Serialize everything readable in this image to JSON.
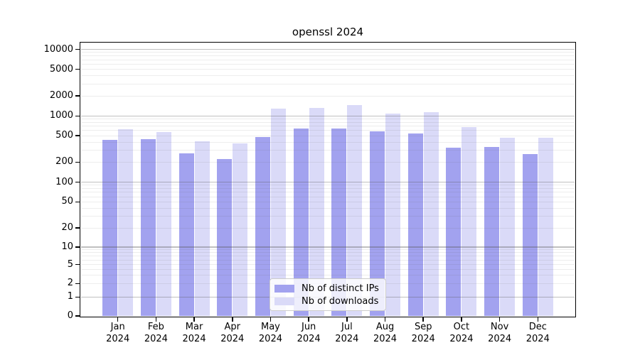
{
  "title": "openssl 2024",
  "year": "2024",
  "months": [
    "Jan",
    "Feb",
    "Mar",
    "Apr",
    "May",
    "Jun",
    "Jul",
    "Aug",
    "Sep",
    "Oct",
    "Nov",
    "Dec"
  ],
  "colors": {
    "distinct_ips": "#a2a2ef",
    "downloads": "#dadaf8",
    "axis": "#000000",
    "grid_major": "#b0b0b0",
    "grid_minor": "#e8e8e8"
  },
  "legend": {
    "items": [
      {
        "label": "Nb of distinct IPs",
        "color": "#a2a2ef"
      },
      {
        "label": "Nb of downloads",
        "color": "#dadaf8"
      }
    ]
  },
  "y_axis": {
    "tick_labels": [
      "0",
      "1",
      "2",
      "5",
      "10",
      "20",
      "50",
      "100",
      "200",
      "500",
      "1000",
      "2000",
      "5000",
      "10000"
    ]
  },
  "chart_data": {
    "type": "bar",
    "title": "openssl 2024",
    "xlabel": "",
    "ylabel": "",
    "yscale": "symlog",
    "ylim": [
      0,
      10000
    ],
    "yticks": [
      0,
      1,
      2,
      5,
      10,
      20,
      50,
      100,
      200,
      500,
      1000,
      2000,
      5000,
      10000
    ],
    "grid": true,
    "legend_position": "lower center",
    "categories": [
      "Jan 2024",
      "Feb 2024",
      "Mar 2024",
      "Apr 2024",
      "May 2024",
      "Jun 2024",
      "Jul 2024",
      "Aug 2024",
      "Sep 2024",
      "Oct 2024",
      "Nov 2024",
      "Dec 2024"
    ],
    "series": [
      {
        "name": "Nb of distinct IPs",
        "color": "#a2a2ef",
        "values": [
          430,
          445,
          270,
          220,
          480,
          640,
          645,
          585,
          540,
          330,
          340,
          265
        ]
      },
      {
        "name": "Nb of downloads",
        "color": "#dadaf8",
        "values": [
          620,
          570,
          415,
          380,
          1280,
          1330,
          1450,
          1085,
          1140,
          680,
          470,
          470
        ]
      }
    ]
  }
}
